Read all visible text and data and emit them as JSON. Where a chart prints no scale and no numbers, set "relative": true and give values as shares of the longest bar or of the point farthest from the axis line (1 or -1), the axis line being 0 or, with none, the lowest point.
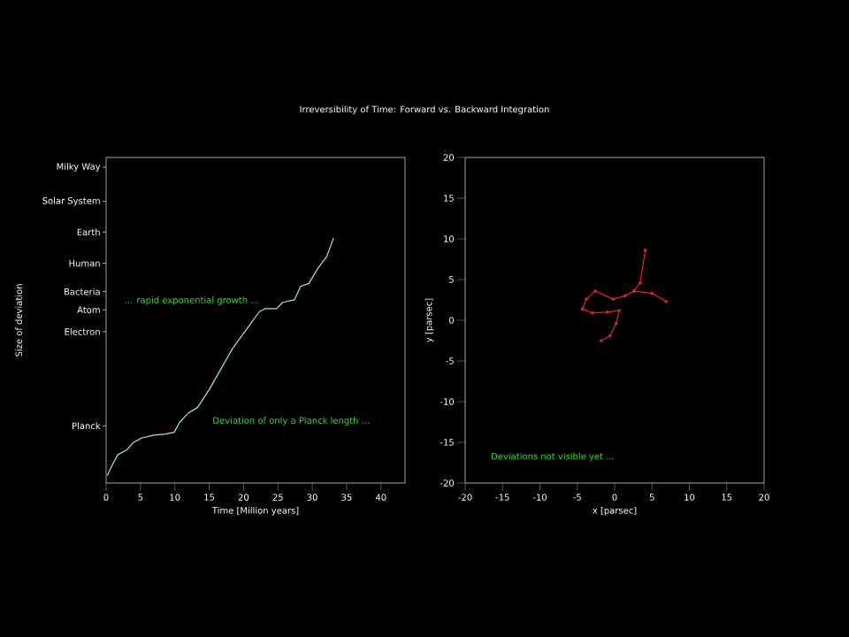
{
  "chart_data": [
    {
      "type": "line",
      "title": "Irreversibility of Time: Forward vs. Backward Integration",
      "xlabel": "Time [Million years]",
      "ylabel": "Size of deviation",
      "relative": true,
      "color": "#a0e8e0",
      "marker": "none",
      "x": [
        0.17,
        0.86,
        1.7,
        3.0,
        3.9,
        5.1,
        6.9,
        8.6,
        9.9,
        10.7,
        11.9,
        13.3,
        15.0,
        16.7,
        18.4,
        20.6,
        22.3,
        23.1,
        24.8,
        25.7,
        27.4,
        28.3,
        29.5,
        30.8,
        32.1,
        33.1
      ],
      "values": [
        0.031,
        0.072,
        0.116,
        0.135,
        0.164,
        0.183,
        0.195,
        0.2,
        0.207,
        0.248,
        0.284,
        0.308,
        0.381,
        0.465,
        0.549,
        0.634,
        0.699,
        0.711,
        0.711,
        0.737,
        0.747,
        0.802,
        0.814,
        0.875,
        0.923,
        1.0
      ],
      "xlim": [
        0,
        43.5
      ],
      "xticks": [
        0,
        5,
        10,
        15,
        20,
        25,
        30,
        35,
        40
      ],
      "annotations": [
        "... rapid exponential growth ...",
        "Deviation of only a Planck length ...",
        "Planck",
        "Electron",
        "Atom",
        "Bacteria",
        "Human",
        "Earth",
        "Solar System",
        "Milky Way"
      ]
    },
    {
      "type": "line",
      "xlabel": "x [parsec]",
      "ylabel": "y [parsec]",
      "color": "#dd2233",
      "marker": "circle",
      "x": [
        6.9,
        5.0,
        2.6,
        1.4,
        -0.2,
        -2.6,
        -3.8,
        -4.3,
        -3.0,
        -1.0,
        0.6,
        0.2,
        -0.6,
        -1.8,
        null,
        2.6,
        3.4,
        4.1
      ],
      "values": [
        2.3,
        3.3,
        3.6,
        3.0,
        2.6,
        3.6,
        2.6,
        1.4,
        0.9,
        1.0,
        1.2,
        -0.4,
        -1.9,
        -2.5,
        null,
        3.6,
        4.6,
        8.6
      ],
      "xlim": [
        -20,
        20
      ],
      "xticks": [
        -20,
        -15,
        -10,
        -5,
        0,
        5,
        10,
        15,
        20
      ],
      "ylim": [
        -20,
        20
      ],
      "yticks": [
        -20,
        -15,
        -10,
        -5,
        0,
        5,
        10,
        15,
        20
      ],
      "annotations": [
        "Deviations not visible yet ..."
      ]
    }
  ]
}
